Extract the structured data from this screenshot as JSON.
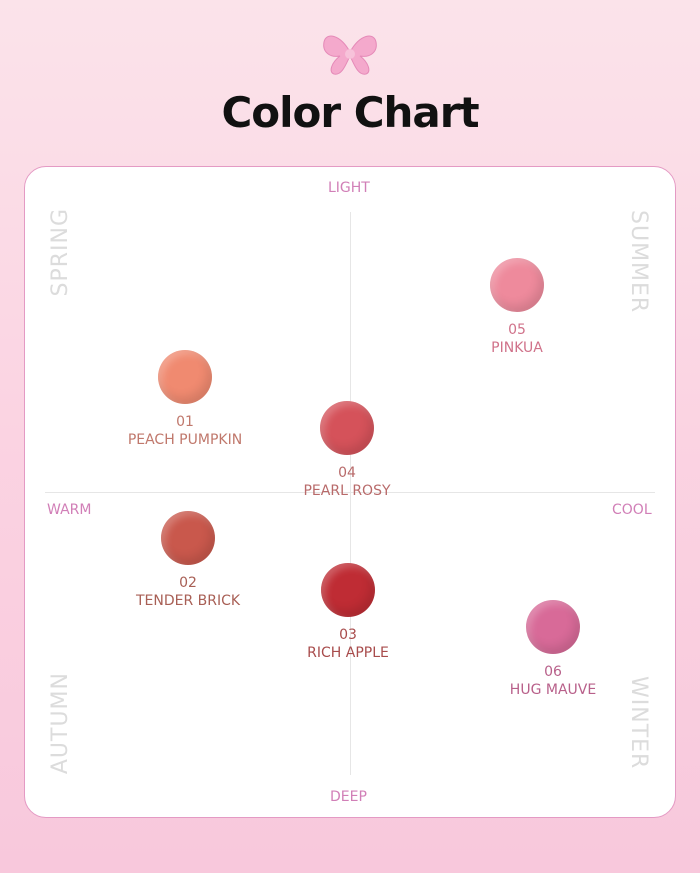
{
  "title": "Color Chart",
  "axes": {
    "top": "LIGHT",
    "bottom": "DEEP",
    "left": "WARM",
    "right": "COOL"
  },
  "seasons": {
    "top_left": "SPRING",
    "top_right": "SUMMER",
    "bottom_left": "AUTUMN",
    "bottom_right": "WINTER"
  },
  "shades": [
    {
      "number": "01",
      "name": "PEACH PUMPKIN",
      "swatch": "#f08a70",
      "label_color": "#c0786c"
    },
    {
      "number": "02",
      "name": "TENDER BRICK",
      "swatch": "#c9584c",
      "label_color": "#a85f55"
    },
    {
      "number": "03",
      "name": "RICH APPLE",
      "swatch": "#bf2c34",
      "label_color": "#a84c4c"
    },
    {
      "number": "04",
      "name": "PEARL ROSY",
      "swatch": "#d5525a",
      "label_color": "#b86a6a"
    },
    {
      "number": "05",
      "name": "PINKUA",
      "swatch": "#ee8a9c",
      "label_color": "#d0728a"
    },
    {
      "number": "06",
      "name": "HUG MAUVE",
      "swatch": "#d86a98",
      "label_color": "#b8608a"
    }
  ]
}
